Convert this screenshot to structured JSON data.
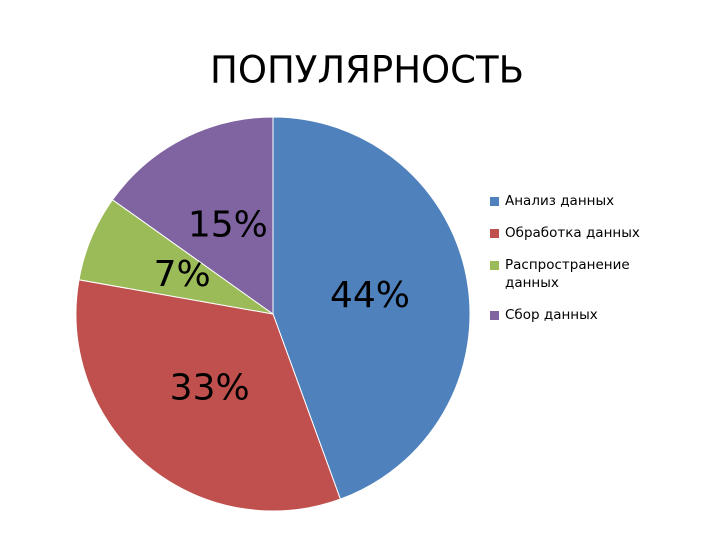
{
  "chart_data": {
    "type": "pie",
    "title": "ПОПУЛЯРНОСТЬ",
    "categories": [
      "Анализ данных",
      "Обработка данных",
      "Распространение данных",
      "Сбор данных"
    ],
    "values": [
      44,
      33,
      7,
      15
    ],
    "value_labels": [
      "44%",
      "33%",
      "7%",
      "15%"
    ],
    "colors": [
      "#4f81bd",
      "#c0504d",
      "#9bbb59",
      "#8064a2"
    ],
    "legend": "right"
  }
}
